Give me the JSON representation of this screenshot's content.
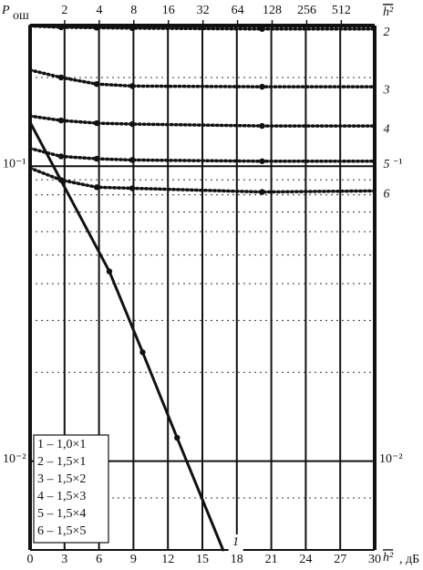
{
  "chart_data": {
    "type": "line",
    "y_label": "P",
    "y_label_sub": "ош",
    "x_label": "h²",
    "x_unit": ", дБ",
    "x2_label": "h²",
    "xlim": [
      0,
      30
    ],
    "xticks": [
      0,
      3,
      6,
      9,
      12,
      15,
      18,
      21,
      24,
      27,
      30
    ],
    "x2ticks": [
      2,
      4,
      8,
      16,
      32,
      64,
      128,
      256,
      512
    ],
    "ylim": [
      0.005,
      0.3
    ],
    "yscale": "log",
    "yticks": [
      {
        "value": 0.1,
        "label": "10⁻¹"
      },
      {
        "value": 0.01,
        "label": "10⁻²"
      }
    ],
    "yminor": [
      0.0075,
      0.02,
      0.03,
      0.04,
      0.05,
      0.06,
      0.07,
      0.08,
      0.09,
      0.2
    ],
    "grid": true,
    "color": "#111111",
    "legend": [
      "1 – 1,0×1",
      "2 – 1,5×1",
      "3 – 1,5×2",
      "4 – 1,5×3",
      "5 – 1,5×4",
      "6 – 1,5×5"
    ],
    "legend_position": "lower left",
    "series": [
      {
        "name": "1",
        "style": "solid",
        "x": [
          0,
          6.9,
          9.8,
          12.8,
          16.8
        ],
        "values": [
          0.141,
          0.044,
          0.0234,
          0.012,
          0.005
        ]
      },
      {
        "name": "2",
        "style": "dotted",
        "x": [
          0,
          2.7,
          5.8,
          8.9,
          20.2,
          30
        ],
        "values": [
          0.299,
          0.296,
          0.295,
          0.294,
          0.292,
          0.292
        ]
      },
      {
        "name": "3",
        "style": "dotted",
        "x": [
          0,
          2.7,
          5.8,
          8.9,
          20.2,
          30
        ],
        "values": [
          0.212,
          0.2,
          0.19,
          0.187,
          0.186,
          0.186
        ]
      },
      {
        "name": "4",
        "style": "dotted",
        "x": [
          0,
          2.7,
          5.8,
          8.9,
          20.2,
          30
        ],
        "values": [
          0.148,
          0.143,
          0.14,
          0.139,
          0.137,
          0.137
        ]
      },
      {
        "name": "5",
        "style": "dotted",
        "x": [
          0,
          2.7,
          5.8,
          8.9,
          20.2,
          30
        ],
        "values": [
          0.115,
          0.108,
          0.106,
          0.105,
          0.104,
          0.104
        ]
      },
      {
        "name": "6",
        "style": "dotted",
        "x": [
          0,
          2.7,
          5.8,
          8.9,
          20.2,
          30
        ],
        "values": [
          0.0986,
          0.0898,
          0.0849,
          0.0842,
          0.0818,
          0.0825
        ]
      }
    ]
  }
}
